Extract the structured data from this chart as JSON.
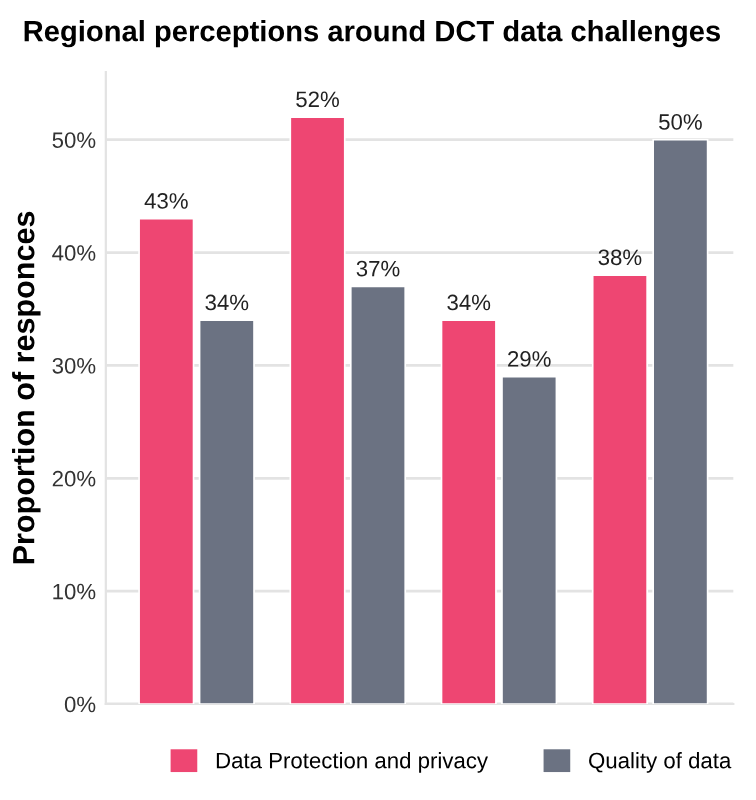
{
  "chart_data": {
    "type": "bar",
    "title": "Regional perceptions around DCT data challenges",
    "ylabel": "Proportion of responces",
    "categories": [
      null,
      null,
      null,
      null
    ],
    "series": [
      {
        "name": "Data Protection and privacy",
        "color": "#ee4672",
        "values": [
          43,
          52,
          34,
          38
        ],
        "value_labels": [
          "43%",
          "52%",
          "34%",
          "38%"
        ]
      },
      {
        "name": "Quality of data",
        "color": "#6b7282",
        "values": [
          34,
          37,
          29,
          50
        ],
        "value_labels": [
          "34%",
          "37%",
          "29%",
          "50%"
        ]
      }
    ],
    "ylim": [
      0,
      56
    ],
    "yticks": [
      {
        "value": 0,
        "label": "0%"
      },
      {
        "value": 10,
        "label": "10%"
      },
      {
        "value": 20,
        "label": "20%"
      },
      {
        "value": 30,
        "label": "30%"
      },
      {
        "value": 40,
        "label": "40%"
      },
      {
        "value": 50,
        "label": "50%"
      }
    ],
    "grid": "y",
    "legend": "bottom"
  }
}
